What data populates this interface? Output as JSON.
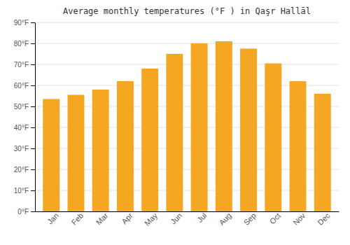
{
  "chart_data": {
    "type": "bar",
    "title": "Average monthly temperatures (°F ) in Qaşr Hallāl",
    "categories": [
      "Jan",
      "Feb",
      "Mar",
      "Apr",
      "May",
      "Jun",
      "Jul",
      "Aug",
      "Sep",
      "Oct",
      "Nov",
      "Dec"
    ],
    "values": [
      53.5,
      55.5,
      58,
      62,
      68,
      75,
      80,
      81,
      77.5,
      70.5,
      62,
      56
    ],
    "color": "#F5A623",
    "ylim": [
      0,
      90
    ],
    "yticks": [
      {
        "value": 0,
        "label": "0°F"
      },
      {
        "value": 10,
        "label": "10°F"
      },
      {
        "value": 20,
        "label": "20°F"
      },
      {
        "value": 30,
        "label": "30°F"
      },
      {
        "value": 40,
        "label": "40°F"
      },
      {
        "value": 50,
        "label": "50°F"
      },
      {
        "value": 60,
        "label": "60°F"
      },
      {
        "value": 70,
        "label": "70°F"
      },
      {
        "value": 80,
        "label": "80°F"
      },
      {
        "value": 90,
        "label": "90°F"
      }
    ],
    "grid": true
  }
}
